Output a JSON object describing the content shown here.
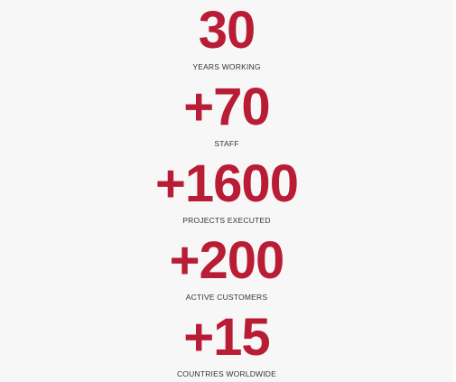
{
  "stats": [
    {
      "value": "30",
      "label": "YEARS WORKING"
    },
    {
      "value": "+70",
      "label": "STAFF"
    },
    {
      "value": "+1600",
      "label": "PROJECTS EXECUTED"
    },
    {
      "value": "+200",
      "label": "ACTIVE CUSTOMERS"
    },
    {
      "value": "+15",
      "label": "COUNTRIES WORLDWIDE"
    }
  ],
  "colors": {
    "accent": "#b91c35",
    "label": "#333333",
    "background": "#f7f7f7"
  }
}
